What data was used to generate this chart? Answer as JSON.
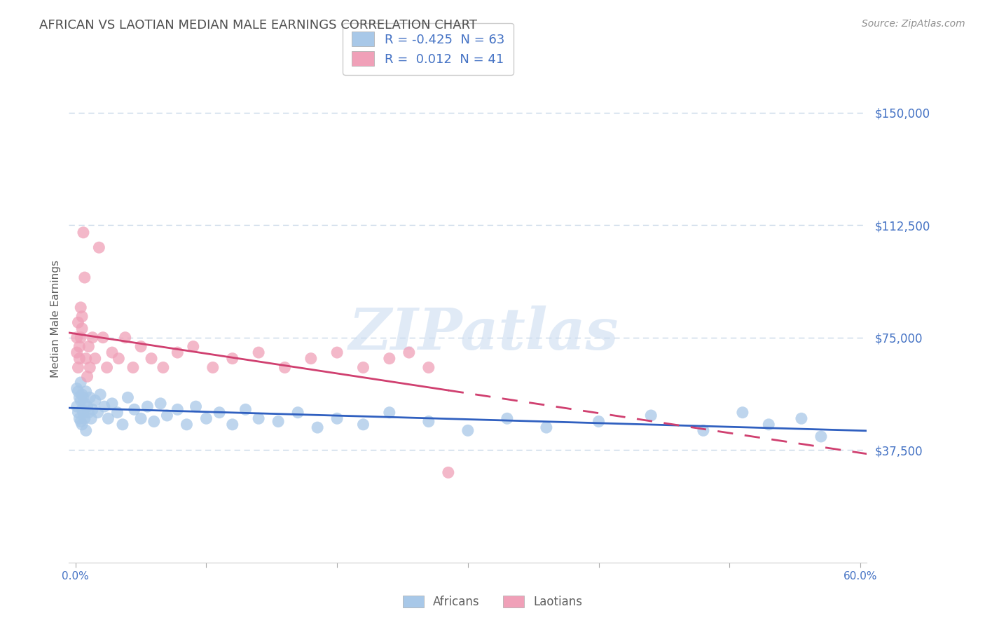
{
  "title": "AFRICAN VS LAOTIAN MEDIAN MALE EARNINGS CORRELATION CHART",
  "source": "Source: ZipAtlas.com",
  "ylabel": "Median Male Earnings",
  "watermark": "ZIPatlas",
  "xlim": [
    -0.005,
    0.605
  ],
  "ylim": [
    0,
    162500
  ],
  "yticks": [
    37500,
    75000,
    112500,
    150000
  ],
  "ytick_labels": [
    "$37,500",
    "$75,000",
    "$112,500",
    "$150,000"
  ],
  "xticks": [
    0.0,
    0.1,
    0.2,
    0.3,
    0.4,
    0.5,
    0.6
  ],
  "xtick_labels": [
    "0.0%",
    "",
    "",
    "",
    "",
    "",
    "60.0%"
  ],
  "african_color": "#a8c8e8",
  "laotian_color": "#f0a0b8",
  "african_line_color": "#3060c0",
  "laotian_line_color": "#d04070",
  "title_color": "#505050",
  "axis_color": "#4472c4",
  "grid_color": "#c8d8e8",
  "background_color": "#ffffff",
  "african_x": [
    0.001,
    0.001,
    0.002,
    0.002,
    0.003,
    0.003,
    0.004,
    0.004,
    0.004,
    0.005,
    0.005,
    0.005,
    0.006,
    0.006,
    0.007,
    0.007,
    0.008,
    0.008,
    0.009,
    0.01,
    0.011,
    0.012,
    0.013,
    0.015,
    0.017,
    0.019,
    0.022,
    0.025,
    0.028,
    0.032,
    0.036,
    0.04,
    0.045,
    0.05,
    0.055,
    0.06,
    0.065,
    0.07,
    0.078,
    0.085,
    0.092,
    0.1,
    0.11,
    0.12,
    0.13,
    0.14,
    0.155,
    0.17,
    0.185,
    0.2,
    0.22,
    0.24,
    0.27,
    0.3,
    0.33,
    0.36,
    0.4,
    0.44,
    0.48,
    0.51,
    0.53,
    0.555,
    0.57
  ],
  "african_y": [
    58000,
    52000,
    57000,
    50000,
    55000,
    48000,
    60000,
    54000,
    47000,
    56000,
    51000,
    46000,
    55000,
    50000,
    53000,
    48000,
    57000,
    44000,
    52000,
    50000,
    55000,
    48000,
    51000,
    54000,
    50000,
    56000,
    52000,
    48000,
    53000,
    50000,
    46000,
    55000,
    51000,
    48000,
    52000,
    47000,
    53000,
    49000,
    51000,
    46000,
    52000,
    48000,
    50000,
    46000,
    51000,
    48000,
    47000,
    50000,
    45000,
    48000,
    46000,
    50000,
    47000,
    44000,
    48000,
    45000,
    47000,
    49000,
    44000,
    50000,
    46000,
    48000,
    42000
  ],
  "laotian_x": [
    0.001,
    0.001,
    0.002,
    0.002,
    0.003,
    0.003,
    0.004,
    0.004,
    0.005,
    0.005,
    0.006,
    0.007,
    0.008,
    0.009,
    0.01,
    0.011,
    0.013,
    0.015,
    0.018,
    0.021,
    0.024,
    0.028,
    0.033,
    0.038,
    0.044,
    0.05,
    0.058,
    0.067,
    0.078,
    0.09,
    0.105,
    0.12,
    0.14,
    0.16,
    0.18,
    0.2,
    0.22,
    0.24,
    0.255,
    0.27,
    0.285
  ],
  "laotian_y": [
    75000,
    70000,
    80000,
    65000,
    72000,
    68000,
    85000,
    75000,
    78000,
    82000,
    110000,
    95000,
    68000,
    62000,
    72000,
    65000,
    75000,
    68000,
    105000,
    75000,
    65000,
    70000,
    68000,
    75000,
    65000,
    72000,
    68000,
    65000,
    70000,
    72000,
    65000,
    68000,
    70000,
    65000,
    68000,
    70000,
    65000,
    68000,
    70000,
    65000,
    30000
  ]
}
